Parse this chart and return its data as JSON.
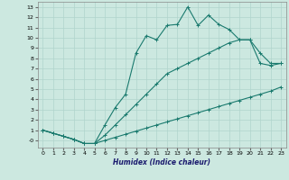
{
  "xlabel": "Humidex (Indice chaleur)",
  "bg_color": "#cce8e0",
  "grid_color": "#b0d4cc",
  "line_color": "#1a7a6e",
  "xlim": [
    -0.5,
    23.5
  ],
  "ylim": [
    -0.7,
    13.5
  ],
  "xticks": [
    0,
    1,
    2,
    3,
    4,
    5,
    6,
    7,
    8,
    9,
    10,
    11,
    12,
    13,
    14,
    15,
    16,
    17,
    18,
    19,
    20,
    21,
    22,
    23
  ],
  "yticks": [
    0,
    1,
    2,
    3,
    4,
    5,
    6,
    7,
    8,
    9,
    10,
    11,
    12,
    13
  ],
  "ytick_labels": [
    "-0",
    "1",
    "2",
    "3",
    "4",
    "5",
    "6",
    "7",
    "8",
    "9",
    "10",
    "11",
    "12",
    "13"
  ],
  "series1_x": [
    0,
    1,
    2,
    3,
    4,
    5,
    6,
    7,
    8,
    9,
    10,
    11,
    12,
    13,
    14,
    15,
    16,
    17,
    18,
    19,
    20,
    21,
    22,
    23
  ],
  "series1_y": [
    1.0,
    0.7,
    0.4,
    0.1,
    -0.3,
    -0.3,
    0.0,
    0.3,
    0.6,
    0.9,
    1.2,
    1.5,
    1.8,
    2.1,
    2.4,
    2.7,
    3.0,
    3.3,
    3.6,
    3.9,
    4.2,
    4.5,
    4.8,
    5.2
  ],
  "series2_x": [
    0,
    1,
    2,
    3,
    4,
    5,
    6,
    7,
    8,
    9,
    10,
    11,
    12,
    13,
    14,
    15,
    16,
    17,
    18,
    19,
    20,
    21,
    22,
    23
  ],
  "series2_y": [
    1.0,
    0.7,
    0.4,
    0.1,
    -0.3,
    -0.3,
    0.5,
    1.5,
    2.5,
    3.5,
    4.5,
    5.5,
    6.5,
    7.0,
    7.5,
    8.0,
    8.5,
    9.0,
    9.5,
    9.8,
    9.8,
    8.5,
    7.5,
    7.5
  ],
  "series3_x": [
    0,
    1,
    2,
    3,
    4,
    5,
    6,
    7,
    8,
    9,
    10,
    11,
    12,
    13,
    14,
    15,
    16,
    17,
    18,
    19,
    20,
    21,
    22,
    23
  ],
  "series3_y": [
    1.0,
    0.7,
    0.4,
    0.1,
    -0.3,
    -0.3,
    1.5,
    3.2,
    4.5,
    8.5,
    10.2,
    9.8,
    11.2,
    11.3,
    13.0,
    11.2,
    12.2,
    11.3,
    10.8,
    9.8,
    9.8,
    7.5,
    7.3,
    7.5
  ]
}
